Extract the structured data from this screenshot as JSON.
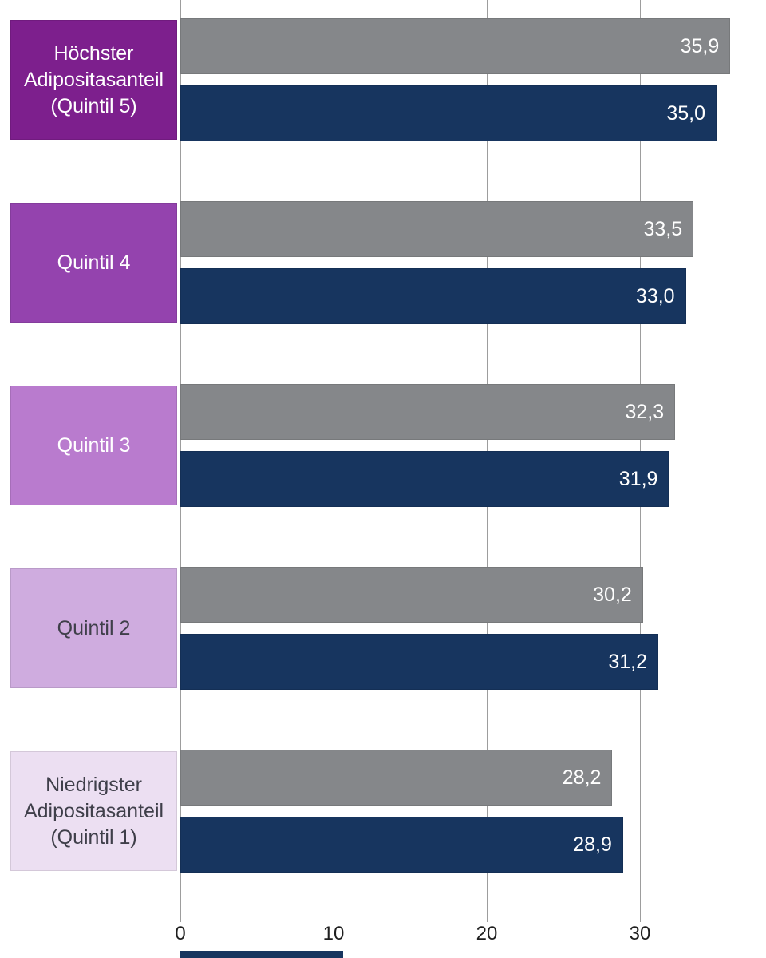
{
  "chart_data": {
    "type": "bar",
    "orientation": "horizontal",
    "title": "",
    "xlabel": "",
    "ylabel": "",
    "xlim": [
      0,
      37.5
    ],
    "grid": "vertical",
    "x_ticks": [
      {
        "value": 0,
        "label": "0"
      },
      {
        "value": 10,
        "label": "10"
      },
      {
        "value": 20,
        "label": "20"
      },
      {
        "value": 30,
        "label": "30"
      }
    ],
    "categories": [
      {
        "label": "Höchster Adipositasanteil (Quintil 5)",
        "box_color": "#7d1f8d",
        "text_color": "#ffffff"
      },
      {
        "label": "Quintil 4",
        "box_color": "#9443ae",
        "text_color": "#ffffff"
      },
      {
        "label": "Quintil 3",
        "box_color": "#b97bce",
        "text_color": "#ffffff"
      },
      {
        "label": "Quintil 2",
        "box_color": "#cfacdf",
        "text_color": "#3f3f4a"
      },
      {
        "label": "Niedrigster Adipositasanteil (Quintil 1)",
        "box_color": "#ecdff2",
        "text_color": "#3f3f4a"
      }
    ],
    "series": [
      {
        "name": "gray-series",
        "color": "#85878a",
        "values": [
          35.9,
          33.5,
          32.3,
          30.2,
          28.2
        ],
        "value_labels": [
          "35,9",
          "33,5",
          "32,3",
          "30,2",
          "28,2"
        ]
      },
      {
        "name": "navy-series",
        "color": "#17355f",
        "values": [
          35.0,
          33.0,
          31.9,
          31.2,
          28.9
        ],
        "value_labels": [
          "35,0",
          "33,0",
          "31,9",
          "31,2",
          "28,9"
        ]
      }
    ],
    "clipped_bottom_element": {
      "color": "#17355f"
    }
  },
  "colors": {
    "background": "#ffffff",
    "gridline": "#9d9d9d",
    "axis_text": "#1f1f1f"
  }
}
